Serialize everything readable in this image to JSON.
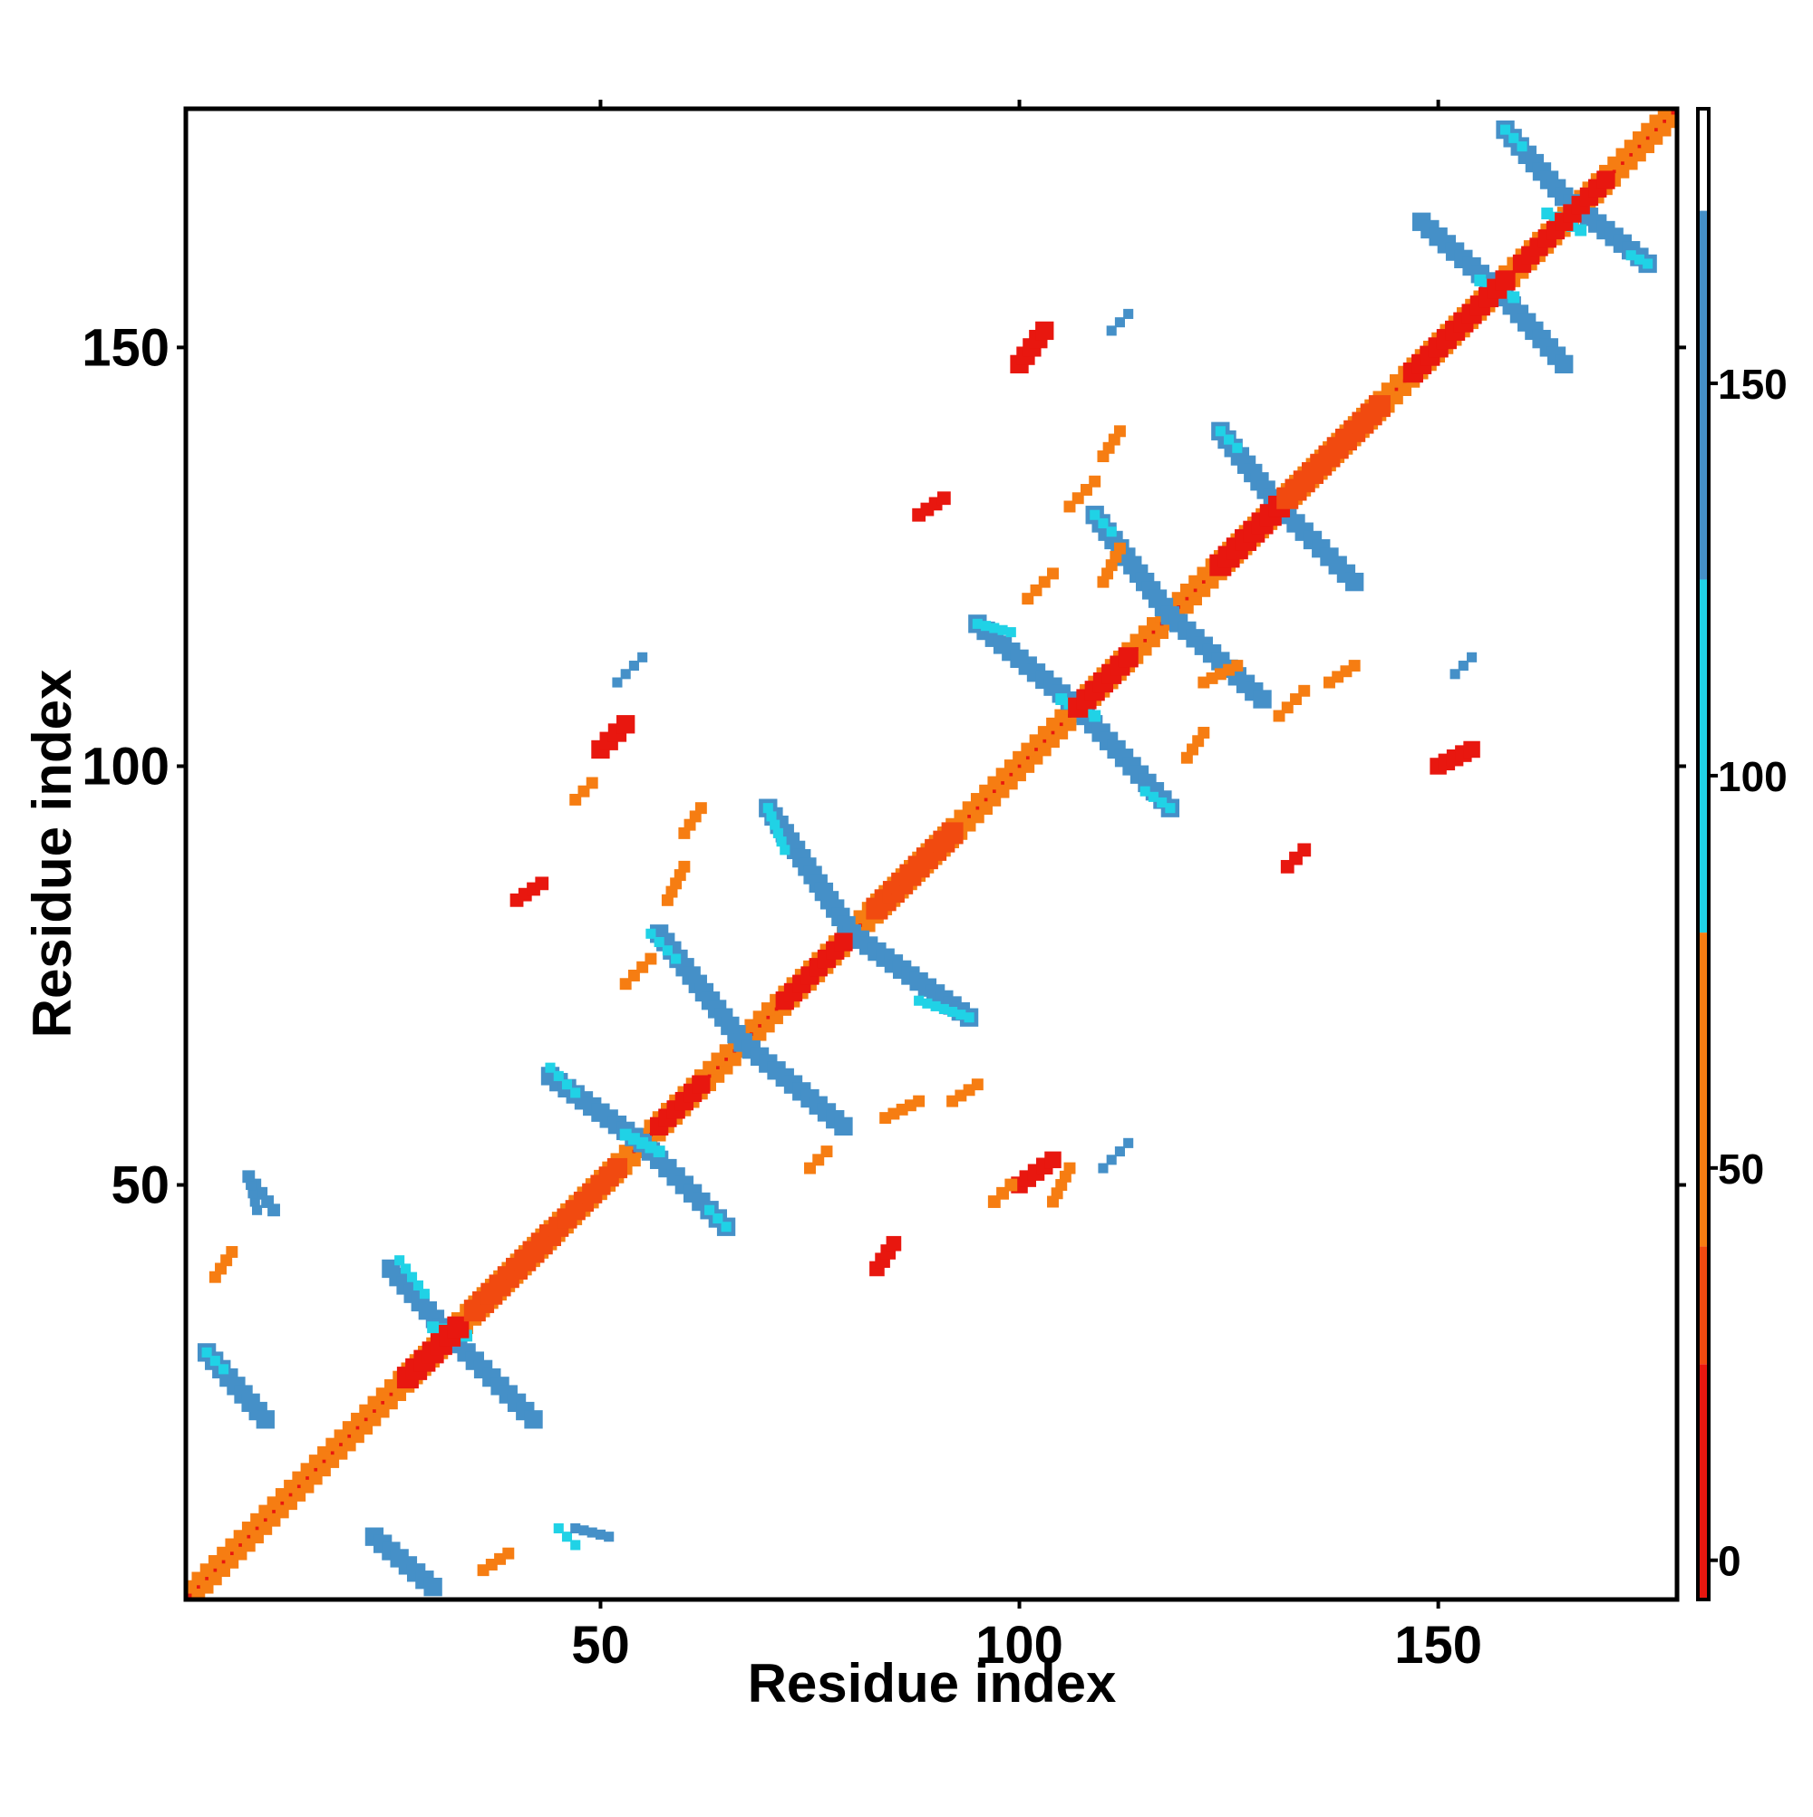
{
  "chart_data": {
    "type": "heatmap",
    "title": "",
    "xlabel": "Residue index",
    "ylabel": "Residue index",
    "xlim": [
      1,
      178
    ],
    "ylim": [
      1,
      178
    ],
    "x_ticks": [
      50,
      100,
      150
    ],
    "y_ticks": [
      50,
      100,
      150
    ],
    "grid": false,
    "colorbar": {
      "position": "right",
      "range": [
        -5,
        185
      ],
      "ticks": [
        0,
        50,
        100,
        150
      ],
      "bands": [
        {
          "from": -5,
          "to": 25,
          "color": "#e8170f"
        },
        {
          "from": 25,
          "to": 40,
          "color": "#f14a10"
        },
        {
          "from": 40,
          "to": 80,
          "color": "#f67d12"
        },
        {
          "from": 80,
          "to": 125,
          "color": "#20d2e6"
        },
        {
          "from": 125,
          "to": 172,
          "color": "#4590c8"
        },
        {
          "from": 172,
          "to": 185,
          "color": "#ffffff"
        }
      ]
    },
    "segments": [
      {
        "category": "diagonal",
        "color": "#e8170f",
        "from": [
          1,
          1
        ],
        "to": [
          178,
          178
        ],
        "width": 1
      },
      {
        "category": "near-diagonal",
        "color": "#f67d12",
        "from": [
          2,
          1
        ],
        "to": [
          178,
          177
        ],
        "width": 1.6
      },
      {
        "category": "near-diagonal",
        "color": "#f67d12",
        "from": [
          1,
          2
        ],
        "to": [
          177,
          178
        ],
        "width": 1.6
      },
      {
        "category": "antiparallel",
        "color": "#4590c8",
        "from": [
          25,
          40
        ],
        "to": [
          32,
          32
        ],
        "width": 2.2
      },
      {
        "category": "antiparallel",
        "color": "#4590c8",
        "from": [
          32,
          32
        ],
        "to": [
          42,
          22
        ],
        "width": 2.2
      },
      {
        "category": "antiparallel",
        "color": "#4590c8",
        "from": [
          3,
          30
        ],
        "to": [
          10,
          22
        ],
        "width": 2.2
      },
      {
        "category": "antiparallel",
        "color": "#4590c8",
        "from": [
          23,
          8
        ],
        "to": [
          30,
          2
        ],
        "width": 2.2
      },
      {
        "category": "antiparallel",
        "color": "#4590c8",
        "from": [
          44,
          63
        ],
        "to": [
          55,
          55
        ],
        "width": 2.2
      },
      {
        "category": "antiparallel",
        "color": "#4590c8",
        "from": [
          55,
          55
        ],
        "to": [
          65,
          45
        ],
        "width": 2.2
      },
      {
        "category": "antiparallel",
        "color": "#4590c8",
        "from": [
          57,
          80
        ],
        "to": [
          67,
          67
        ],
        "width": 2.2
      },
      {
        "category": "antiparallel",
        "color": "#4590c8",
        "from": [
          67,
          67
        ],
        "to": [
          79,
          57
        ],
        "width": 2.2
      },
      {
        "category": "antiparallel",
        "color": "#4590c8",
        "from": [
          70,
          95
        ],
        "to": [
          80,
          80
        ],
        "width": 2.2
      },
      {
        "category": "antiparallel",
        "color": "#4590c8",
        "from": [
          80,
          80
        ],
        "to": [
          94,
          70
        ],
        "width": 2.2
      },
      {
        "category": "antiparallel",
        "color": "#4590c8",
        "from": [
          95,
          117
        ],
        "to": [
          107,
          107
        ],
        "width": 2.2
      },
      {
        "category": "antiparallel",
        "color": "#4590c8",
        "from": [
          107,
          107
        ],
        "to": [
          118,
          95
        ],
        "width": 2.2
      },
      {
        "category": "antiparallel",
        "color": "#4590c8",
        "from": [
          109,
          130
        ],
        "to": [
          118,
          118
        ],
        "width": 2.2
      },
      {
        "category": "antiparallel",
        "color": "#4590c8",
        "from": [
          118,
          118
        ],
        "to": [
          129,
          108
        ],
        "width": 2.2
      },
      {
        "category": "antiparallel",
        "color": "#4590c8",
        "from": [
          124,
          140
        ],
        "to": [
          131,
          131
        ],
        "width": 2.2
      },
      {
        "category": "antiparallel",
        "color": "#4590c8",
        "from": [
          131,
          131
        ],
        "to": [
          140,
          122
        ],
        "width": 2.2
      },
      {
        "category": "antiparallel",
        "color": "#4590c8",
        "from": [
          148,
          165
        ],
        "to": [
          157,
          157
        ],
        "width": 2.2
      },
      {
        "category": "antiparallel",
        "color": "#4590c8",
        "from": [
          157,
          157
        ],
        "to": [
          165,
          148
        ],
        "width": 2.2
      },
      {
        "category": "antiparallel",
        "color": "#4590c8",
        "from": [
          158,
          176
        ],
        "to": [
          165,
          168
        ],
        "width": 2.2
      },
      {
        "category": "antiparallel",
        "color": "#4590c8",
        "from": [
          165,
          168
        ],
        "to": [
          175,
          160
        ],
        "width": 2.2
      },
      {
        "category": "antiparallel",
        "color": "#4590c8",
        "from": [
          8,
          51
        ],
        "to": [
          11,
          47
        ],
        "width": 1.5
      },
      {
        "category": "cyan-edge",
        "color": "#20d2e6",
        "from": [
          26,
          41
        ],
        "to": [
          29,
          37
        ],
        "width": 1.2
      },
      {
        "category": "cyan-edge",
        "color": "#20d2e6",
        "from": [
          44,
          64
        ],
        "to": [
          47,
          61
        ],
        "width": 1.2
      },
      {
        "category": "cyan-edge",
        "color": "#20d2e6",
        "from": [
          56,
          80
        ],
        "to": [
          59,
          77
        ],
        "width": 1.2
      },
      {
        "category": "cyan-edge",
        "color": "#20d2e6",
        "from": [
          63,
          47
        ],
        "to": [
          65,
          45
        ],
        "width": 1.2
      },
      {
        "category": "cyan-edge",
        "color": "#20d2e6",
        "from": [
          70,
          95
        ],
        "to": [
          72,
          90
        ],
        "width": 1.2
      },
      {
        "category": "cyan-edge",
        "color": "#20d2e6",
        "from": [
          88,
          72
        ],
        "to": [
          94,
          70
        ],
        "width": 1.2
      },
      {
        "category": "cyan-edge",
        "color": "#20d2e6",
        "from": [
          95,
          117
        ],
        "to": [
          99,
          116
        ],
        "width": 1.2
      },
      {
        "category": "cyan-edge",
        "color": "#20d2e6",
        "from": [
          115,
          97
        ],
        "to": [
          118,
          95
        ],
        "width": 1.2
      },
      {
        "category": "cyan-edge",
        "color": "#20d2e6",
        "from": [
          109,
          130
        ],
        "to": [
          111,
          128
        ],
        "width": 1.2
      },
      {
        "category": "cyan-edge",
        "color": "#20d2e6",
        "from": [
          124,
          140
        ],
        "to": [
          126,
          138
        ],
        "width": 1.2
      },
      {
        "category": "cyan-edge",
        "color": "#20d2e6",
        "from": [
          158,
          176
        ],
        "to": [
          160,
          174
        ],
        "width": 1.2
      },
      {
        "category": "cyan-edge",
        "color": "#20d2e6",
        "from": [
          173,
          161
        ],
        "to": [
          175,
          160
        ],
        "width": 1.2
      },
      {
        "category": "cyan-edge",
        "color": "#20d2e6",
        "from": [
          3,
          30
        ],
        "to": [
          5,
          28
        ],
        "width": 1.2
      },
      {
        "category": "cyan-edge",
        "color": "#20d2e6",
        "from": [
          45,
          9
        ],
        "to": [
          47,
          7
        ],
        "width": 1.2
      },
      {
        "category": "cyan-edge",
        "color": "#20d2e6",
        "from": [
          30,
          33
        ],
        "to": [
          34,
          32
        ],
        "width": 1.4
      },
      {
        "category": "cyan-edge",
        "color": "#20d2e6",
        "from": [
          53,
          56
        ],
        "to": [
          57,
          54
        ],
        "width": 1.4
      },
      {
        "category": "cyan-edge",
        "color": "#20d2e6",
        "from": [
          105,
          108
        ],
        "to": [
          109,
          106
        ],
        "width": 1.4
      },
      {
        "category": "cyan-edge",
        "color": "#20d2e6",
        "from": [
          155,
          158
        ],
        "to": [
          159,
          156
        ],
        "width": 1.4
      },
      {
        "category": "cyan-edge",
        "color": "#20d2e6",
        "from": [
          163,
          166
        ],
        "to": [
          167,
          164
        ],
        "width": 1.4
      },
      {
        "category": "helix-block",
        "color": "#e8170f",
        "from": [
          27,
          27
        ],
        "to": [
          33,
          33
        ],
        "width": 2.6
      },
      {
        "category": "helix-block",
        "color": "#f14a10",
        "from": [
          35,
          35
        ],
        "to": [
          44,
          44
        ],
        "width": 2.6
      },
      {
        "category": "helix-block",
        "color": "#f14a10",
        "from": [
          45,
          45
        ],
        "to": [
          52,
          52
        ],
        "width": 2.4
      },
      {
        "category": "helix-block",
        "color": "#e8170f",
        "from": [
          57,
          57
        ],
        "to": [
          62,
          62
        ],
        "width": 2.2
      },
      {
        "category": "helix-block",
        "color": "#e8170f",
        "from": [
          72,
          72
        ],
        "to": [
          79,
          79
        ],
        "width": 2.2
      },
      {
        "category": "helix-block",
        "color": "#f14a10",
        "from": [
          83,
          83
        ],
        "to": [
          92,
          92
        ],
        "width": 2.6
      },
      {
        "category": "helix-block",
        "color": "#e8170f",
        "from": [
          107,
          107
        ],
        "to": [
          113,
          113
        ],
        "width": 2.4
      },
      {
        "category": "helix-block",
        "color": "#e8170f",
        "from": [
          124,
          124
        ],
        "to": [
          131,
          131
        ],
        "width": 2.6
      },
      {
        "category": "helix-block",
        "color": "#f14a10",
        "from": [
          132,
          132
        ],
        "to": [
          143,
          143
        ],
        "width": 2.6
      },
      {
        "category": "helix-block",
        "color": "#e8170f",
        "from": [
          147,
          147
        ],
        "to": [
          158,
          158
        ],
        "width": 2.4
      },
      {
        "category": "helix-block",
        "color": "#e8170f",
        "from": [
          160,
          160
        ],
        "to": [
          170,
          170
        ],
        "width": 2.2
      },
      {
        "category": "off-diagonal",
        "color": "#e8170f",
        "from": [
          100,
          148
        ],
        "to": [
          103,
          152
        ],
        "width": 2.2
      },
      {
        "category": "off-diagonal",
        "color": "#e8170f",
        "from": [
          50,
          102
        ],
        "to": [
          53,
          105
        ],
        "width": 2.2
      },
      {
        "category": "off-diagonal",
        "color": "#e8170f",
        "from": [
          150,
          100
        ],
        "to": [
          154,
          102
        ],
        "width": 2.0
      },
      {
        "category": "off-diagonal",
        "color": "#e8170f",
        "from": [
          100,
          50
        ],
        "to": [
          104,
          53
        ],
        "width": 2.0
      },
      {
        "category": "off-diagonal",
        "color": "#e8170f",
        "from": [
          83,
          40
        ],
        "to": [
          85,
          43
        ],
        "width": 1.8
      },
      {
        "category": "off-diagonal",
        "color": "#e8170f",
        "from": [
          40,
          84
        ],
        "to": [
          43,
          86
        ],
        "width": 1.6
      },
      {
        "category": "off-diagonal",
        "color": "#e8170f",
        "from": [
          88,
          130
        ],
        "to": [
          91,
          132
        ],
        "width": 1.6
      },
      {
        "category": "off-diagonal",
        "color": "#e8170f",
        "from": [
          132,
          88
        ],
        "to": [
          134,
          90
        ],
        "width": 1.6
      },
      {
        "category": "off-diagonal",
        "color": "#f67d12",
        "from": [
          97,
          48
        ],
        "to": [
          99,
          50
        ],
        "width": 1.5
      },
      {
        "category": "off-diagonal",
        "color": "#f67d12",
        "from": [
          47,
          96
        ],
        "to": [
          49,
          98
        ],
        "width": 1.4
      },
      {
        "category": "off-diagonal",
        "color": "#f67d12",
        "from": [
          104,
          48
        ],
        "to": [
          106,
          52
        ],
        "width": 1.4
      },
      {
        "category": "off-diagonal",
        "color": "#f67d12",
        "from": [
          4,
          39
        ],
        "to": [
          6,
          42
        ],
        "width": 1.4
      },
      {
        "category": "off-diagonal",
        "color": "#f67d12",
        "from": [
          36,
          4
        ],
        "to": [
          39,
          6
        ],
        "width": 1.4
      },
      {
        "category": "off-diagonal",
        "color": "#f67d12",
        "from": [
          84,
          58
        ],
        "to": [
          88,
          60
        ],
        "width": 1.4
      },
      {
        "category": "off-diagonal",
        "color": "#f67d12",
        "from": [
          92,
          60
        ],
        "to": [
          95,
          62
        ],
        "width": 1.4
      },
      {
        "category": "off-diagonal",
        "color": "#f67d12",
        "from": [
          58,
          84
        ],
        "to": [
          60,
          88
        ],
        "width": 1.4
      },
      {
        "category": "off-diagonal",
        "color": "#f67d12",
        "from": [
          60,
          92
        ],
        "to": [
          62,
          95
        ],
        "width": 1.4
      },
      {
        "category": "off-diagonal",
        "color": "#f67d12",
        "from": [
          53,
          74
        ],
        "to": [
          56,
          77
        ],
        "width": 1.4
      },
      {
        "category": "off-diagonal",
        "color": "#f67d12",
        "from": [
          75,
          52
        ],
        "to": [
          77,
          54
        ],
        "width": 1.4
      },
      {
        "category": "off-diagonal",
        "color": "#f67d12",
        "from": [
          101,
          120
        ],
        "to": [
          104,
          123
        ],
        "width": 1.4
      },
      {
        "category": "off-diagonal",
        "color": "#f67d12",
        "from": [
          120,
          101
        ],
        "to": [
          122,
          104
        ],
        "width": 1.4
      },
      {
        "category": "off-diagonal",
        "color": "#f67d12",
        "from": [
          106,
          131
        ],
        "to": [
          109,
          134
        ],
        "width": 1.4
      },
      {
        "category": "off-diagonal",
        "color": "#f67d12",
        "from": [
          131,
          106
        ],
        "to": [
          134,
          109
        ],
        "width": 1.4
      },
      {
        "category": "off-diagonal",
        "color": "#f67d12",
        "from": [
          122,
          110
        ],
        "to": [
          126,
          112
        ],
        "width": 1.4
      },
      {
        "category": "off-diagonal",
        "color": "#f67d12",
        "from": [
          110,
          122
        ],
        "to": [
          112,
          126
        ],
        "width": 1.4
      },
      {
        "category": "off-diagonal",
        "color": "#f67d12",
        "from": [
          137,
          110
        ],
        "to": [
          140,
          112
        ],
        "width": 1.4
      },
      {
        "category": "off-diagonal",
        "color": "#f67d12",
        "from": [
          110,
          137
        ],
        "to": [
          112,
          140
        ],
        "width": 1.4
      },
      {
        "category": "sparse",
        "color": "#4590c8",
        "from": [
          111,
          152
        ],
        "to": [
          113,
          154
        ],
        "width": 1.2
      },
      {
        "category": "sparse",
        "color": "#4590c8",
        "from": [
          152,
          111
        ],
        "to": [
          154,
          113
        ],
        "width": 1.2
      },
      {
        "category": "sparse",
        "color": "#4590c8",
        "from": [
          52,
          110
        ],
        "to": [
          55,
          113
        ],
        "width": 1.2
      },
      {
        "category": "sparse",
        "color": "#4590c8",
        "from": [
          110,
          52
        ],
        "to": [
          113,
          55
        ],
        "width": 1.2
      },
      {
        "category": "sparse",
        "color": "#4590c8",
        "from": [
          47,
          9
        ],
        "to": [
          51,
          8
        ],
        "width": 1.2
      },
      {
        "category": "sparse",
        "color": "#4590c8",
        "from": [
          9,
          47
        ],
        "to": [
          8,
          51
        ],
        "width": 1.2
      }
    ]
  }
}
